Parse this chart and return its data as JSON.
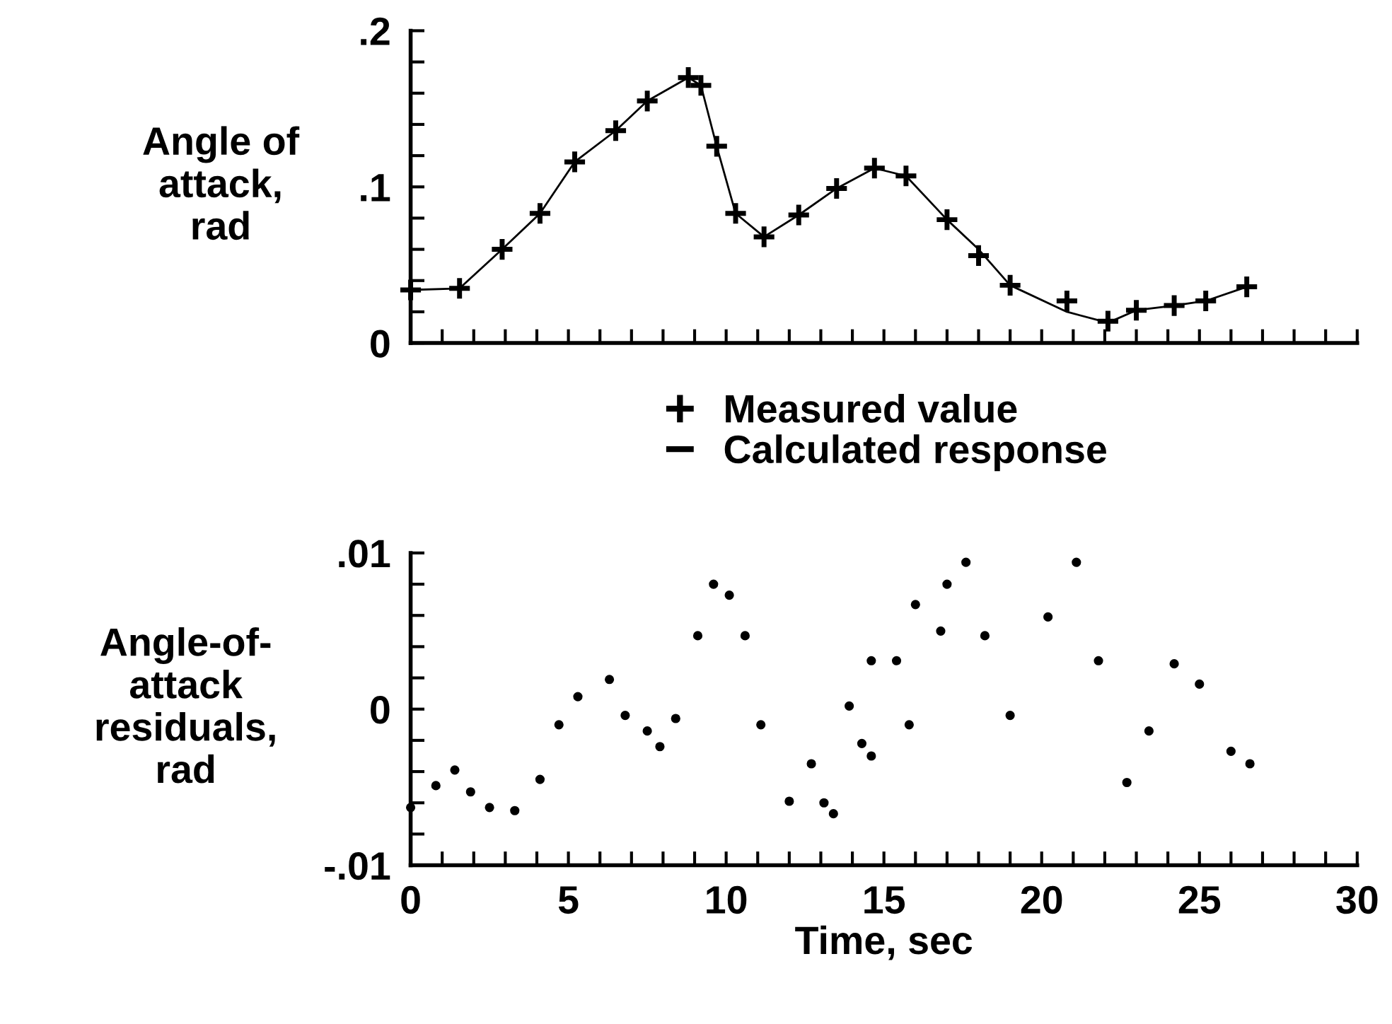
{
  "chart_data": [
    {
      "type": "line",
      "ylabel": "Angle of\nattack,\nrad",
      "xlim": [
        0,
        30
      ],
      "ylim": [
        0,
        0.2
      ],
      "tick_labels": "y",
      "grid": false,
      "legend": "bottom",
      "xticks": [
        {
          "value": 0,
          "label": null
        },
        {
          "value": 1,
          "label": null
        },
        {
          "value": 2,
          "label": null
        },
        {
          "value": 3,
          "label": null
        },
        {
          "value": 4,
          "label": null
        },
        {
          "value": 5,
          "label": null
        },
        {
          "value": 6,
          "label": null
        },
        {
          "value": 7,
          "label": null
        },
        {
          "value": 8,
          "label": null
        },
        {
          "value": 9,
          "label": null
        },
        {
          "value": 10,
          "label": null
        },
        {
          "value": 11,
          "label": null
        },
        {
          "value": 12,
          "label": null
        },
        {
          "value": 13,
          "label": null
        },
        {
          "value": 14,
          "label": null
        },
        {
          "value": 15,
          "label": null
        },
        {
          "value": 16,
          "label": null
        },
        {
          "value": 17,
          "label": null
        },
        {
          "value": 18,
          "label": null
        },
        {
          "value": 19,
          "label": null
        },
        {
          "value": 20,
          "label": null
        },
        {
          "value": 21,
          "label": null
        },
        {
          "value": 22,
          "label": null
        },
        {
          "value": 23,
          "label": null
        },
        {
          "value": 24,
          "label": null
        },
        {
          "value": 25,
          "label": null
        },
        {
          "value": 26,
          "label": null
        },
        {
          "value": 27,
          "label": null
        },
        {
          "value": 28,
          "label": null
        },
        {
          "value": 29,
          "label": null
        },
        {
          "value": 30,
          "label": null
        }
      ],
      "yticks": [
        {
          "value": 0,
          "label": "0"
        },
        {
          "value": 0.02,
          "label": null
        },
        {
          "value": 0.04,
          "label": null
        },
        {
          "value": 0.06,
          "label": null
        },
        {
          "value": 0.08,
          "label": null
        },
        {
          "value": 0.1,
          "label": ".1"
        },
        {
          "value": 0.12,
          "label": null
        },
        {
          "value": 0.14,
          "label": null
        },
        {
          "value": 0.16,
          "label": null
        },
        {
          "value": 0.18,
          "label": null
        },
        {
          "value": 0.2,
          "label": ".2"
        }
      ],
      "series": [
        {
          "name": "Measured value",
          "type": "scatter",
          "marker": "cross",
          "color": "#000000",
          "x": [
            0,
            1.55,
            2.9,
            4.1,
            5.2,
            6.5,
            7.5,
            8.8,
            9.2,
            9.7,
            10.3,
            11.2,
            12.3,
            13.5,
            14.7,
            15.7,
            17.0,
            18.0,
            19.0,
            20.8,
            22.1,
            23.0,
            24.2,
            25.2,
            26.5
          ],
          "values": [
            0.034,
            0.035,
            0.06,
            0.083,
            0.116,
            0.136,
            0.155,
            0.17,
            0.165,
            0.126,
            0.083,
            0.068,
            0.082,
            0.099,
            0.112,
            0.107,
            0.079,
            0.056,
            0.037,
            0.027,
            0.014,
            0.021,
            0.024,
            0.027,
            0.036
          ]
        },
        {
          "name": "Calculated response",
          "type": "line",
          "marker": "none",
          "color": "#000000",
          "x": [
            0,
            1.55,
            2.9,
            4.1,
            5.2,
            6.5,
            7.5,
            8.8,
            9.2,
            9.7,
            10.3,
            11.2,
            12.3,
            13.5,
            14.7,
            15.7,
            17.0,
            18.0,
            19.0,
            20.8,
            22.1,
            23.0,
            24.2,
            25.2,
            26.5
          ],
          "values": [
            0.034,
            0.035,
            0.06,
            0.083,
            0.116,
            0.136,
            0.155,
            0.17,
            0.165,
            0.126,
            0.083,
            0.068,
            0.082,
            0.099,
            0.112,
            0.107,
            0.079,
            0.06,
            0.037,
            0.02,
            0.013,
            0.021,
            0.024,
            0.027,
            0.036
          ]
        }
      ]
    },
    {
      "type": "scatter",
      "ylabel": "Angle-of-\nattack\nresiduals,\nrad",
      "xlabel": "Time, sec",
      "xlim": [
        0,
        30
      ],
      "ylim": [
        -0.01,
        0.01
      ],
      "grid": false,
      "marker": "circle",
      "xticks": [
        {
          "value": 0,
          "label": "0"
        },
        {
          "value": 1,
          "label": null
        },
        {
          "value": 2,
          "label": null
        },
        {
          "value": 3,
          "label": null
        },
        {
          "value": 4,
          "label": null
        },
        {
          "value": 5,
          "label": "5"
        },
        {
          "value": 6,
          "label": null
        },
        {
          "value": 7,
          "label": null
        },
        {
          "value": 8,
          "label": null
        },
        {
          "value": 9,
          "label": null
        },
        {
          "value": 10,
          "label": "10"
        },
        {
          "value": 11,
          "label": null
        },
        {
          "value": 12,
          "label": null
        },
        {
          "value": 13,
          "label": null
        },
        {
          "value": 14,
          "label": null
        },
        {
          "value": 15,
          "label": "15"
        },
        {
          "value": 16,
          "label": null
        },
        {
          "value": 17,
          "label": null
        },
        {
          "value": 18,
          "label": null
        },
        {
          "value": 19,
          "label": null
        },
        {
          "value": 20,
          "label": "20"
        },
        {
          "value": 21,
          "label": null
        },
        {
          "value": 22,
          "label": null
        },
        {
          "value": 23,
          "label": null
        },
        {
          "value": 24,
          "label": null
        },
        {
          "value": 25,
          "label": "25"
        },
        {
          "value": 26,
          "label": null
        },
        {
          "value": 27,
          "label": null
        },
        {
          "value": 28,
          "label": null
        },
        {
          "value": 29,
          "label": null
        },
        {
          "value": 30,
          "label": "30"
        }
      ],
      "yticks": [
        {
          "value": -0.01,
          "label": "-.01"
        },
        {
          "value": -0.008,
          "label": null
        },
        {
          "value": -0.006,
          "label": null
        },
        {
          "value": -0.004,
          "label": null
        },
        {
          "value": -0.002,
          "label": null
        },
        {
          "value": 0,
          "label": "0"
        },
        {
          "value": 0.002,
          "label": null
        },
        {
          "value": 0.004,
          "label": null
        },
        {
          "value": 0.006,
          "label": null
        },
        {
          "value": 0.008,
          "label": null
        },
        {
          "value": 0.01,
          "label": ".01"
        }
      ],
      "series": [
        {
          "color": "#000000",
          "x": [
            0,
            0.8,
            1.4,
            1.9,
            2.5,
            3.3,
            4.1,
            4.7,
            5.3,
            6.3,
            6.8,
            7.5,
            7.9,
            8.4,
            9.1,
            9.6,
            10.1,
            10.6,
            11.1,
            12.0,
            12.7,
            13.1,
            13.4,
            13.9,
            14.3,
            14.6,
            14.6,
            15.4,
            15.8,
            16.0,
            16.8,
            17.0,
            17.6,
            18.2,
            19.0,
            20.2,
            21.1,
            21.8,
            22.7,
            23.4,
            24.2,
            25.0,
            26.0,
            26.6
          ],
          "values": [
            -0.0063,
            -0.0049,
            -0.0039,
            -0.0053,
            -0.0063,
            -0.0065,
            -0.0045,
            -0.001,
            0.0008,
            0.0019,
            -0.0004,
            -0.0014,
            -0.0024,
            -0.0006,
            0.0047,
            0.008,
            0.0073,
            0.0047,
            -0.001,
            -0.0059,
            -0.0035,
            -0.006,
            -0.0067,
            0.0002,
            -0.0022,
            -0.003,
            0.0031,
            0.0031,
            -0.001,
            0.0067,
            0.005,
            0.008,
            0.0094,
            0.0047,
            -0.0004,
            0.0059,
            0.0094,
            0.0031,
            -0.0047,
            -0.0014,
            0.0029,
            0.0016,
            -0.0027,
            -0.0035
          ]
        }
      ]
    }
  ]
}
